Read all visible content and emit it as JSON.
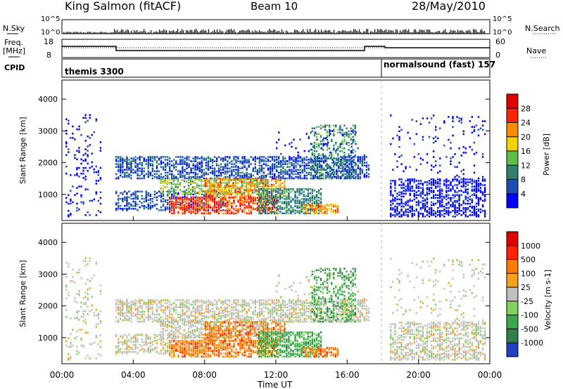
{
  "header": {
    "station": "King Salmon (fitACF)",
    "beam": "Beam 10",
    "date": "28/May/2010"
  },
  "nsky_panel": {
    "left_label": "N.Sky",
    "right_label": "N.Search",
    "left_ticks": [
      "10^5",
      "10^0"
    ],
    "right_ticks": [
      "10^5",
      "10^0"
    ]
  },
  "freq_panel": {
    "left_label_line1": "Freq.",
    "left_label_line2": "[MHz]",
    "left_ticks": [
      "18",
      "8"
    ],
    "right_label": "Nave",
    "right_ticks": [
      "60",
      "0"
    ]
  },
  "cpid_panel": {
    "label": "CPID",
    "segments": [
      {
        "text": "themis 3300",
        "start_hour": 0
      },
      {
        "text": "normalsound (fast) 157",
        "start_hour": 18
      }
    ]
  },
  "chart_data": [
    {
      "type": "heatmap",
      "name": "power",
      "ylabel": "Slant Range [km]",
      "yticks": [
        "1000",
        "2000",
        "3000",
        "4000"
      ],
      "ylim": [
        180,
        4600
      ],
      "xlim": [
        0,
        24
      ],
      "colorbar_label": "Power [dB]",
      "colorbar_ticks": [
        "4",
        "8",
        "12",
        "16",
        "20",
        "24",
        "28"
      ],
      "colorbar_colors": [
        "#0000ff",
        "#1a4fb0",
        "#2f7f6a",
        "#5cbf4a",
        "#f2d200",
        "#ff8c00",
        "#ff2400",
        "#e00000"
      ],
      "mode_change_hour": 18.2
    },
    {
      "type": "heatmap",
      "name": "velocity",
      "ylabel": "Slant Range [km]",
      "yticks": [
        "1000",
        "2000",
        "3000",
        "4000"
      ],
      "ylim": [
        180,
        4600
      ],
      "xlim": [
        0,
        24
      ],
      "colorbar_label": "Velocity [m s-1]",
      "colorbar_ticks": [
        "1000",
        "500",
        "100",
        "25",
        "-25",
        "-100",
        "-500",
        "-1000"
      ],
      "colorbar_colors": [
        "#2040c0",
        "#2f7f4a",
        "#3aa84a",
        "#7ed35a",
        "#c0c0c0",
        "#f4a21a",
        "#ff7a00",
        "#ff2000",
        "#e00000"
      ],
      "mode_change_hour": 18.2
    }
  ],
  "xaxis": {
    "ticks": [
      "00:00",
      "04:00",
      "08:00",
      "12:00",
      "16:00",
      "20:00",
      "00:00"
    ],
    "label": "Time UT"
  }
}
